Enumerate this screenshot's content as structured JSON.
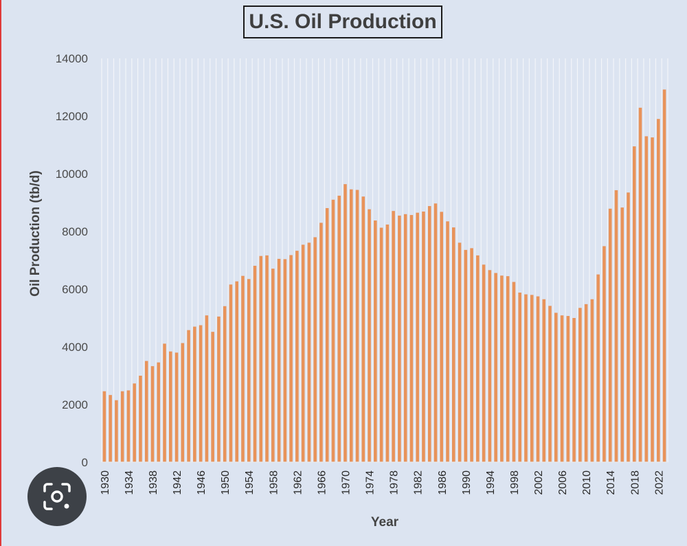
{
  "chart_data": {
    "type": "bar",
    "title": "U.S. Oil Production",
    "xlabel": "Year",
    "ylabel": "Oil Production (tb/d)",
    "ylim": [
      0,
      14000
    ],
    "yticks": [
      "0",
      "2000",
      "4000",
      "6000",
      "8000",
      "10000",
      "12000",
      "14000"
    ],
    "xtick_labels": [
      "1930",
      "1934",
      "1938",
      "1942",
      "1946",
      "1950",
      "1954",
      "1958",
      "1962",
      "1966",
      "1970",
      "1974",
      "1978",
      "1982",
      "1986",
      "1990",
      "1994",
      "1998",
      "2002",
      "2006",
      "2010",
      "2014",
      "2018",
      "2022"
    ],
    "grid": "vertical",
    "bar_color": "#e8935a",
    "background": "#dce4f1",
    "x": [
      1930,
      1931,
      1932,
      1933,
      1934,
      1935,
      1936,
      1937,
      1938,
      1939,
      1940,
      1941,
      1942,
      1943,
      1944,
      1945,
      1946,
      1947,
      1948,
      1949,
      1950,
      1951,
      1952,
      1953,
      1954,
      1955,
      1956,
      1957,
      1958,
      1959,
      1960,
      1961,
      1962,
      1963,
      1964,
      1965,
      1966,
      1967,
      1968,
      1969,
      1970,
      1971,
      1972,
      1973,
      1974,
      1975,
      1976,
      1977,
      1978,
      1979,
      1980,
      1981,
      1982,
      1983,
      1984,
      1985,
      1986,
      1987,
      1988,
      1989,
      1990,
      1991,
      1992,
      1993,
      1994,
      1995,
      1996,
      1997,
      1998,
      1999,
      2000,
      2001,
      2002,
      2003,
      2004,
      2005,
      2006,
      2007,
      2008,
      2009,
      2010,
      2011,
      2012,
      2013,
      2014,
      2015,
      2016,
      2017,
      2018,
      2019,
      2020,
      2021,
      2022,
      2023
    ],
    "values": [
      2460,
      2330,
      2150,
      2460,
      2490,
      2730,
      3000,
      3510,
      3330,
      3460,
      4110,
      3840,
      3800,
      4130,
      4580,
      4700,
      4750,
      5090,
      4520,
      5050,
      5410,
      6160,
      6270,
      6460,
      6350,
      6810,
      7150,
      7170,
      6710,
      7050,
      7040,
      7180,
      7330,
      7540,
      7610,
      7800,
      8300,
      8810,
      9100,
      9240,
      9640,
      9460,
      9440,
      9210,
      8770,
      8380,
      8130,
      8240,
      8710,
      8550,
      8600,
      8570,
      8650,
      8690,
      8880,
      8970,
      8680,
      8350,
      8140,
      7610,
      7360,
      7420,
      7170,
      6850,
      6660,
      6560,
      6470,
      6450,
      6250,
      5880,
      5820,
      5800,
      5750,
      5650,
      5420,
      5180,
      5090,
      5070,
      5000,
      5350,
      5480,
      5650,
      6510,
      7490,
      8790,
      9430,
      8830,
      9350,
      10950,
      12290,
      11300,
      11260,
      11900,
      12920
    ]
  },
  "ui": {
    "lens_button_icon": "google-lens-camera-icon"
  }
}
